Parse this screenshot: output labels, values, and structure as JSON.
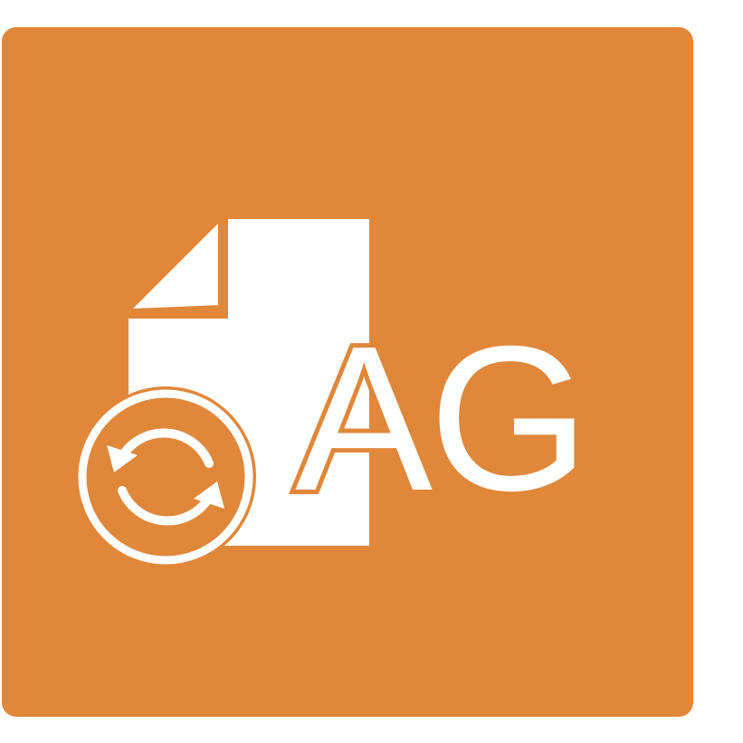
{
  "icon": {
    "name": "file-sync-ag-icon",
    "letters": "AG",
    "background_color": "#E0873A",
    "foreground_color": "#FFFFFF",
    "page_color": "#FFFFFF",
    "glyphs": [
      "document-icon",
      "sync-arrows-icon"
    ]
  }
}
